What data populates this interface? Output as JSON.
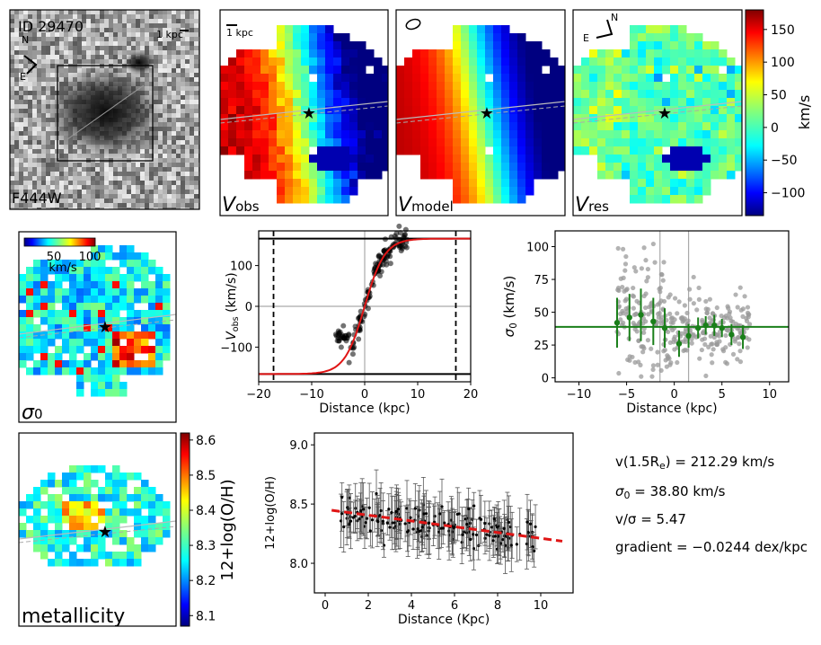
{
  "panels": {
    "image": {
      "id_label": "ID 29470",
      "filter": "F444W",
      "scale": "1 kpc",
      "north": "N",
      "east": "E"
    },
    "vobs": {
      "label": "V",
      "sub": "obs",
      "scale": "1 kpc"
    },
    "vmodel": {
      "label": "V",
      "sub": "model"
    },
    "vres": {
      "label": "V",
      "sub": "res",
      "north": "N",
      "east": "E"
    },
    "sigma_map": {
      "label": "σ",
      "sub": "0",
      "cbar_unit": "km/s",
      "cbar_ticks": [
        "50",
        "100"
      ]
    },
    "metal_map": {
      "label": "metallicity"
    }
  },
  "colorbars": {
    "velocity": {
      "label": "km/s",
      "ticks": [
        "150",
        "100",
        "50",
        "0",
        "−50",
        "−100"
      ],
      "range": [
        -135,
        180
      ]
    },
    "metallicity": {
      "label": "12+log(O/H)",
      "ticks": [
        "8.6",
        "8.5",
        "8.4",
        "8.3",
        "8.2",
        "8.1"
      ],
      "range": [
        8.07,
        8.62
      ]
    }
  },
  "chart_data": [
    {
      "type": "scatter",
      "name": "rotation-curve",
      "xlabel": "Distance (kpc)",
      "ylabel_main": "V",
      "ylabel_sub": "obs",
      "ylabel_unit": " (km/s)",
      "xlim": [
        -20,
        20
      ],
      "ylim": [
        -185,
        185
      ],
      "xticks": [
        -20,
        -10,
        0,
        10,
        20
      ],
      "yticks": [
        -100,
        0,
        100
      ],
      "xtick_labels": [
        "−20",
        "−10",
        "0",
        "10",
        "20"
      ],
      "ytick_labels": [
        "−100",
        "0",
        "100"
      ],
      "vmax": 166,
      "r_dashed": 17.2,
      "r_scale": 3.8,
      "point_range": [
        -5.5,
        8
      ],
      "n_points": 160
    },
    {
      "type": "scatter",
      "name": "dispersion-profile",
      "xlabel": "Distance (kpc)",
      "ylabel_main": "σ",
      "ylabel_sub": "0",
      "ylabel_unit": " (km/s)",
      "xlim": [
        -12.5,
        12
      ],
      "ylim": [
        -3,
        112
      ],
      "xticks": [
        -10,
        -5,
        0,
        5,
        10
      ],
      "yticks": [
        0,
        25,
        50,
        75,
        100
      ],
      "xtick_labels": [
        "−10",
        "−5",
        "0",
        "5",
        "10"
      ],
      "ytick_labels": [
        "0",
        "25",
        "50",
        "75",
        "100"
      ],
      "sigma0": 38.8,
      "vlines": [
        -1.5,
        1.5
      ],
      "binned": [
        {
          "x": -6.0,
          "y": 42,
          "err": 19
        },
        {
          "x": -4.7,
          "y": 46,
          "err": 18
        },
        {
          "x": -3.5,
          "y": 48,
          "err": 20
        },
        {
          "x": -2.2,
          "y": 43,
          "err": 18
        },
        {
          "x": -1.0,
          "y": 38,
          "err": 15
        },
        {
          "x": 0.5,
          "y": 26,
          "err": 10
        },
        {
          "x": 1.5,
          "y": 32,
          "err": 9
        },
        {
          "x": 2.5,
          "y": 38,
          "err": 8
        },
        {
          "x": 3.3,
          "y": 40,
          "err": 7
        },
        {
          "x": 4.2,
          "y": 40,
          "err": 8
        },
        {
          "x": 5.0,
          "y": 38,
          "err": 7
        },
        {
          "x": 6.0,
          "y": 33,
          "err": 8
        },
        {
          "x": 7.2,
          "y": 31,
          "err": 9
        }
      ]
    },
    {
      "type": "scatter",
      "name": "metallicity-gradient",
      "xlabel": "Distance (Kpc)",
      "ylabel": "12+log(O/H)",
      "xlim": [
        -0.5,
        11.5
      ],
      "ylim": [
        7.75,
        9.1
      ],
      "xticks": [
        0,
        2,
        4,
        6,
        8,
        10
      ],
      "yticks": [
        8.0,
        8.5,
        9.0
      ],
      "xtick_labels": [
        "0",
        "2",
        "4",
        "6",
        "8",
        "10"
      ],
      "ytick_labels": [
        "8.0",
        "8.5",
        "9.0"
      ],
      "fit": {
        "intercept": 8.455,
        "slope": -0.0244,
        "x_range": [
          0.3,
          11
        ]
      },
      "point_range": [
        0.5,
        9.9
      ],
      "n_points": 190
    }
  ],
  "summary": {
    "vrot_prefix": "v(1.5R",
    "vrot_sub": "e",
    "vrot_suffix": ") = 212.29 km/s",
    "sigma_main": "σ",
    "sigma_sub": "0",
    "sigma_value": " = 38.80 km/s",
    "vsig": "v/σ = 5.47",
    "gradient": "gradient = −0.0244 dex/kpc"
  }
}
